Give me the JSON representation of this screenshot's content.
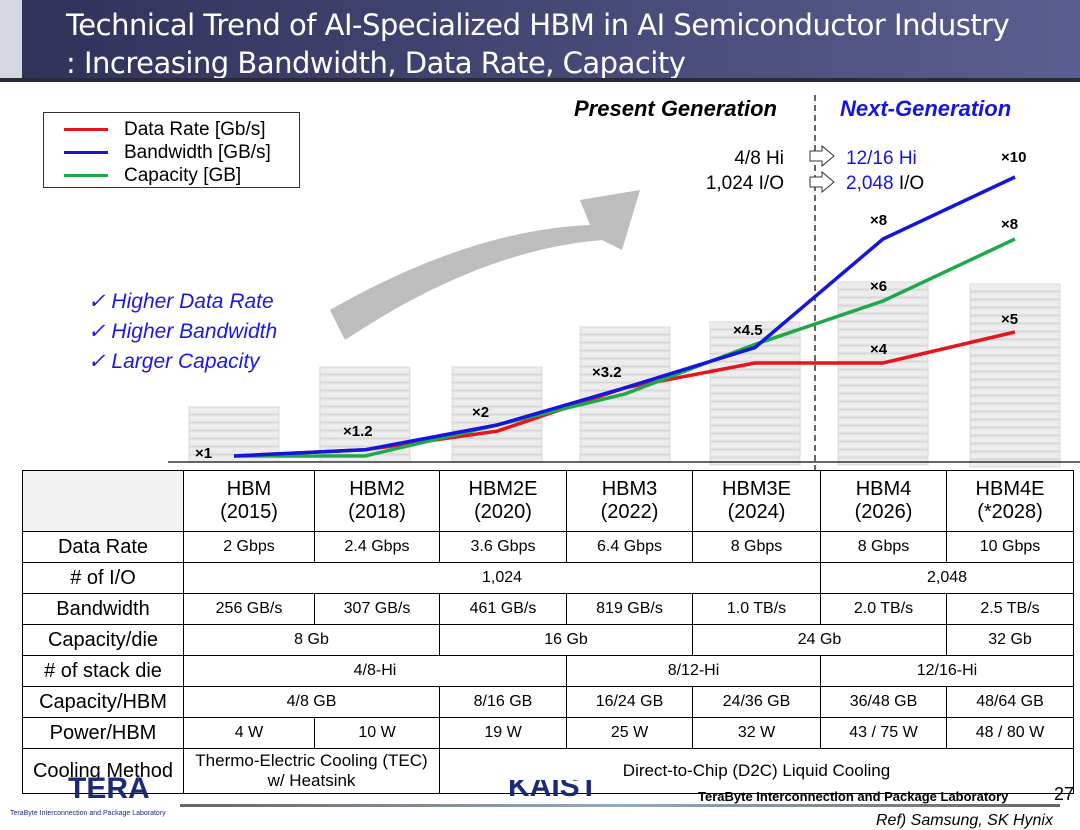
{
  "title": {
    "line1": "Technical Trend of AI-Specialized HBM in AI Semiconductor Industry",
    "line2": ": Increasing Bandwidth, Data Rate, Capacity"
  },
  "legend": [
    {
      "label": "Data Rate [Gb/s]",
      "color": "#e8141b"
    },
    {
      "label": "Bandwidth [GB/s]",
      "color": "#1515e0"
    },
    {
      "label": "Capacity [GB]",
      "color": "#1fa84a"
    }
  ],
  "generations": {
    "present": "Present Generation",
    "next": "Next-Generation"
  },
  "transitions": [
    {
      "from": "4/8 Hi",
      "to_num": "12/16 Hi",
      "to_unit": ""
    },
    {
      "from": "1,024 I/O",
      "to_num": "2,048",
      "to_unit": " I/O"
    }
  ],
  "checks": [
    "✓  Higher Data Rate",
    "✓  Higher Bandwidth",
    "✓  Larger Capacity"
  ],
  "chart_data": {
    "type": "line",
    "categories": [
      "HBM",
      "HBM2",
      "HBM2E",
      "HBM3",
      "HBM3E",
      "HBM4",
      "HBM4E"
    ],
    "series": [
      {
        "name": "Data Rate [Gb/s]",
        "values": [
          1,
          1.2,
          1.8,
          3.2,
          4,
          4,
          5
        ]
      },
      {
        "name": "Capacity [GB]",
        "values": [
          1,
          1,
          2,
          3,
          4.6,
          6,
          8
        ]
      },
      {
        "name": "Bandwidth [GB/s]",
        "values": [
          1,
          1.2,
          2,
          3.2,
          4.5,
          8,
          10
        ]
      }
    ],
    "labels": [
      "×1",
      "×1.2",
      "×2",
      "×3.2",
      "×4.5",
      "×8",
      "×6",
      "×4",
      "×10",
      "×8",
      "×5"
    ]
  },
  "table": {
    "corner": "",
    "headers": [
      [
        "HBM",
        "(2015)"
      ],
      [
        "HBM2",
        "(2018)"
      ],
      [
        "HBM2E",
        "(2020)"
      ],
      [
        "HBM3",
        "(2022)"
      ],
      [
        "HBM3E",
        "(2024)"
      ],
      [
        "HBM4",
        "(2026)"
      ],
      [
        "HBM4E",
        "(*2028)"
      ]
    ],
    "rows": [
      {
        "label": "Data Rate",
        "cells": [
          {
            "t": "2 Gbps",
            "s": 1
          },
          {
            "t": "2.4 Gbps",
            "s": 1
          },
          {
            "t": "3.6 Gbps",
            "s": 1
          },
          {
            "t": "6.4 Gbps",
            "s": 1
          },
          {
            "t": "8 Gbps",
            "s": 1
          },
          {
            "t": "8 Gbps",
            "s": 1
          },
          {
            "t": "10 Gbps",
            "s": 1
          }
        ]
      },
      {
        "label": "# of I/O",
        "cells": [
          {
            "t": "1,024",
            "s": 5
          },
          {
            "t": "2,048",
            "s": 2
          }
        ]
      },
      {
        "label": "Bandwidth",
        "cells": [
          {
            "t": "256 GB/s",
            "s": 1
          },
          {
            "t": "307 GB/s",
            "s": 1
          },
          {
            "t": "461 GB/s",
            "s": 1
          },
          {
            "t": "819 GB/s",
            "s": 1
          },
          {
            "t": "1.0 TB/s",
            "s": 1
          },
          {
            "t": "2.0 TB/s",
            "s": 1
          },
          {
            "t": "2.5 TB/s",
            "s": 1
          }
        ]
      },
      {
        "label": "Capacity/die",
        "cells": [
          {
            "t": "8 Gb",
            "s": 2
          },
          {
            "t": "16 Gb",
            "s": 2
          },
          {
            "t": "24 Gb",
            "s": 2
          },
          {
            "t": "32 Gb",
            "s": 1
          }
        ]
      },
      {
        "label": "# of stack die",
        "cells": [
          {
            "t": "4/8-Hi",
            "s": 3
          },
          {
            "t": "8/12-Hi",
            "s": 2
          },
          {
            "t": "12/16-Hi",
            "s": 2
          }
        ]
      },
      {
        "label": "Capacity/HBM",
        "cells": [
          {
            "t": "4/8 GB",
            "s": 2
          },
          {
            "t": "8/16 GB",
            "s": 1
          },
          {
            "t": "16/24 GB",
            "s": 1
          },
          {
            "t": "24/36 GB",
            "s": 1
          },
          {
            "t": "36/48 GB",
            "s": 1
          },
          {
            "t": "48/64 GB",
            "s": 1
          }
        ]
      },
      {
        "label": "Power/HBM",
        "cells": [
          {
            "t": "4 W",
            "s": 1
          },
          {
            "t": "10 W",
            "s": 1
          },
          {
            "t": "19 W",
            "s": 1
          },
          {
            "t": "25 W",
            "s": 1
          },
          {
            "t": "32 W",
            "s": 1
          },
          {
            "t": "43 / 75 W",
            "s": 1
          },
          {
            "t": "48 / 80 W",
            "s": 1
          }
        ]
      },
      {
        "label": "Cooling Method",
        "cells": [
          {
            "t": "Thermo-Electric Cooling (TEC)\nw/ Heatsink",
            "s": 2
          },
          {
            "t": "Direct-to-Chip (D2C) Liquid Cooling",
            "s": 5
          }
        ]
      }
    ]
  },
  "footer": {
    "logo_left": "TERA",
    "logo_left_sub": "TeraByte Interconnection and Package Laboratory",
    "logo_center": "KAIST",
    "lab": "TeraByte Interconnection and Package Laboratory",
    "page": "27",
    "ref": "Ref) Samsung, SK Hynix"
  }
}
